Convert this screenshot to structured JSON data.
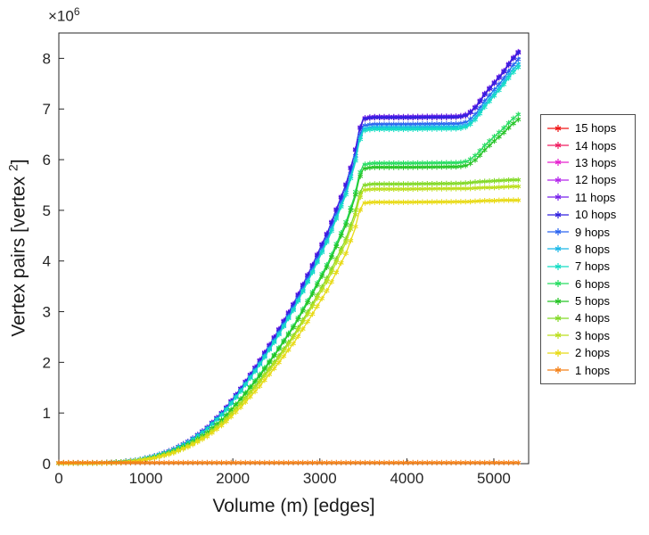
{
  "axes": {
    "x_label": "Volume (m) [edges]",
    "y_label_prefix": "Vertex pairs [vertex ",
    "y_label_sup": "2",
    "y_label_suffix": "]",
    "offset_label": "×10",
    "offset_exp": "6",
    "x_ticks": [
      0,
      1000,
      2000,
      3000,
      4000,
      5000
    ],
    "x_tick_labels": [
      "0",
      "1000",
      "2000",
      "3000",
      "4000",
      "5000"
    ],
    "y_ticks": [
      0,
      1,
      2,
      3,
      4,
      5,
      6,
      7,
      8
    ],
    "y_tick_labels": [
      "0",
      "1",
      "2",
      "3",
      "4",
      "5",
      "6",
      "7",
      "8"
    ],
    "axis_color": "#262626"
  },
  "legend": {
    "entries": [
      {
        "label": "15 hops",
        "color": "#f01414"
      },
      {
        "label": "14 hops",
        "color": "#f01e62"
      },
      {
        "label": "13 hops",
        "color": "#e620cf"
      },
      {
        "label": "12 hops",
        "color": "#b424ec"
      },
      {
        "label": "11 hops",
        "color": "#7722ec"
      },
      {
        "label": "10 hops",
        "color": "#3020df"
      },
      {
        "label": "9 hops",
        "color": "#2a64f0"
      },
      {
        "label": "8 hops",
        "color": "#1ab8e8"
      },
      {
        "label": "7 hops",
        "color": "#14ddc4"
      },
      {
        "label": "6 hops",
        "color": "#27dd62"
      },
      {
        "label": "5 hops",
        "color": "#25c425"
      },
      {
        "label": "4 hops",
        "color": "#82d926"
      },
      {
        "label": "3 hops",
        "color": "#bcdf1e"
      },
      {
        "label": "2 hops",
        "color": "#e8da16"
      },
      {
        "label": "1 hops",
        "color": "#f58118"
      }
    ]
  },
  "chart_data": {
    "type": "line",
    "title": "",
    "xlabel": "Volume (m) [edges]",
    "ylabel": "Vertex pairs [vertex^2]",
    "y_scale_note": "y values in millions (axis shows x10^6)",
    "xlim": [
      0,
      5400
    ],
    "ylim_millions": [
      0,
      8.5
    ],
    "legend_position": "right-outside",
    "grid": false,
    "marker": "asterisk",
    "x": [
      0,
      400,
      700,
      900,
      1100,
      1300,
      1500,
      1700,
      1900,
      2100,
      2300,
      2500,
      2700,
      2900,
      3100,
      3300,
      3400,
      3450,
      3500,
      3600,
      4000,
      4600,
      4700,
      4800,
      4900,
      5000,
      5100,
      5200,
      5300
    ],
    "series": [
      {
        "name": "15 hops",
        "color": "#f01414",
        "y": [
          0.01,
          0.01,
          0.03,
          0.07,
          0.15,
          0.27,
          0.45,
          0.7,
          1.05,
          1.5,
          2.0,
          2.55,
          3.15,
          3.85,
          4.6,
          5.5,
          6.1,
          6.55,
          6.8,
          6.83,
          6.83,
          6.84,
          6.88,
          7.05,
          7.3,
          7.5,
          7.7,
          7.95,
          8.15
        ]
      },
      {
        "name": "14 hops",
        "color": "#f01e62",
        "y": [
          0.01,
          0.01,
          0.03,
          0.07,
          0.15,
          0.27,
          0.45,
          0.7,
          1.05,
          1.5,
          2.0,
          2.55,
          3.15,
          3.85,
          4.6,
          5.5,
          6.1,
          6.55,
          6.8,
          6.83,
          6.83,
          6.84,
          6.88,
          7.05,
          7.3,
          7.5,
          7.7,
          7.95,
          8.15
        ]
      },
      {
        "name": "13 hops",
        "color": "#e620cf",
        "y": [
          0.01,
          0.01,
          0.03,
          0.07,
          0.15,
          0.27,
          0.45,
          0.7,
          1.05,
          1.5,
          2.0,
          2.55,
          3.15,
          3.85,
          4.6,
          5.5,
          6.1,
          6.55,
          6.8,
          6.83,
          6.83,
          6.84,
          6.88,
          7.05,
          7.3,
          7.5,
          7.7,
          7.95,
          8.15
        ]
      },
      {
        "name": "12 hops",
        "color": "#b424ec",
        "y": [
          0.01,
          0.01,
          0.03,
          0.07,
          0.15,
          0.27,
          0.45,
          0.7,
          1.05,
          1.5,
          2.0,
          2.55,
          3.15,
          3.85,
          4.6,
          5.5,
          6.1,
          6.55,
          6.8,
          6.83,
          6.83,
          6.84,
          6.88,
          7.05,
          7.3,
          7.5,
          7.7,
          7.95,
          8.15
        ]
      },
      {
        "name": "11 hops",
        "color": "#7722ec",
        "y": [
          0.01,
          0.01,
          0.03,
          0.07,
          0.15,
          0.27,
          0.45,
          0.71,
          1.06,
          1.51,
          2.02,
          2.57,
          3.17,
          3.87,
          4.62,
          5.52,
          6.12,
          6.57,
          6.82,
          6.85,
          6.85,
          6.86,
          6.9,
          7.07,
          7.32,
          7.52,
          7.72,
          7.97,
          8.17
        ]
      },
      {
        "name": "10 hops",
        "color": "#3020df",
        "y": [
          0.01,
          0.01,
          0.03,
          0.07,
          0.15,
          0.27,
          0.45,
          0.7,
          1.05,
          1.5,
          2.0,
          2.55,
          3.15,
          3.85,
          4.6,
          5.5,
          6.1,
          6.55,
          6.8,
          6.83,
          6.83,
          6.84,
          6.88,
          7.05,
          7.3,
          7.5,
          7.7,
          7.95,
          8.15
        ]
      },
      {
        "name": "9 hops",
        "color": "#2a64f0",
        "y": [
          0.01,
          0.01,
          0.03,
          0.07,
          0.15,
          0.26,
          0.44,
          0.69,
          1.03,
          1.47,
          1.96,
          2.5,
          3.09,
          3.78,
          4.51,
          5.4,
          5.99,
          6.43,
          6.67,
          6.7,
          6.7,
          6.71,
          6.75,
          6.92,
          7.17,
          7.37,
          7.57,
          7.82,
          8.02
        ]
      },
      {
        "name": "8 hops",
        "color": "#1ab8e8",
        "y": [
          0.01,
          0.01,
          0.03,
          0.07,
          0.15,
          0.26,
          0.44,
          0.68,
          1.02,
          1.46,
          1.94,
          2.48,
          3.06,
          3.74,
          4.47,
          5.35,
          5.93,
          6.37,
          6.61,
          6.64,
          6.64,
          6.65,
          6.69,
          6.86,
          7.1,
          7.3,
          7.5,
          7.74,
          7.92
        ]
      },
      {
        "name": "7 hops",
        "color": "#14ddc4",
        "y": [
          0.01,
          0.01,
          0.03,
          0.07,
          0.14,
          0.26,
          0.43,
          0.68,
          1.01,
          1.45,
          1.93,
          2.46,
          3.04,
          3.72,
          4.44,
          5.31,
          5.89,
          6.33,
          6.57,
          6.6,
          6.6,
          6.61,
          6.65,
          6.81,
          7.05,
          7.25,
          7.45,
          7.68,
          7.86
        ]
      },
      {
        "name": "6 hops",
        "color": "#27dd62",
        "y": [
          0.01,
          0.01,
          0.03,
          0.06,
          0.13,
          0.23,
          0.39,
          0.61,
          0.91,
          1.3,
          1.74,
          2.21,
          2.73,
          3.34,
          3.99,
          4.77,
          5.29,
          5.69,
          5.9,
          5.93,
          5.93,
          5.94,
          5.97,
          6.1,
          6.29,
          6.45,
          6.6,
          6.78,
          6.92
        ]
      },
      {
        "name": "5 hops",
        "color": "#25c425",
        "y": [
          0.01,
          0.01,
          0.03,
          0.06,
          0.13,
          0.23,
          0.39,
          0.6,
          0.9,
          1.29,
          1.71,
          2.19,
          2.7,
          3.3,
          3.94,
          4.71,
          5.23,
          5.61,
          5.82,
          5.85,
          5.85,
          5.86,
          5.89,
          6.01,
          6.2,
          6.36,
          6.51,
          6.68,
          6.82
        ]
      },
      {
        "name": "4 hops",
        "color": "#82d926",
        "y": [
          0.01,
          0.01,
          0.02,
          0.06,
          0.12,
          0.22,
          0.36,
          0.57,
          0.85,
          1.21,
          1.62,
          2.06,
          2.54,
          3.11,
          3.72,
          4.44,
          4.93,
          5.29,
          5.49,
          5.52,
          5.52,
          5.53,
          5.54,
          5.56,
          5.57,
          5.58,
          5.59,
          5.6,
          5.6
        ]
      },
      {
        "name": "3 hops",
        "color": "#bcdf1e",
        "y": [
          0.01,
          0.01,
          0.02,
          0.06,
          0.12,
          0.21,
          0.36,
          0.56,
          0.83,
          1.19,
          1.59,
          2.02,
          2.5,
          3.06,
          3.65,
          4.37,
          4.84,
          5.2,
          5.4,
          5.42,
          5.42,
          5.43,
          5.43,
          5.44,
          5.45,
          5.45,
          5.46,
          5.47,
          5.47
        ]
      },
      {
        "name": "2 hops",
        "color": "#e8da16",
        "y": [
          0.01,
          0.01,
          0.02,
          0.05,
          0.11,
          0.2,
          0.34,
          0.53,
          0.79,
          1.13,
          1.51,
          1.93,
          2.38,
          2.91,
          3.47,
          4.15,
          4.61,
          4.95,
          5.14,
          5.16,
          5.16,
          5.17,
          5.17,
          5.18,
          5.19,
          5.19,
          5.2,
          5.2,
          5.2
        ]
      },
      {
        "name": "1 hops",
        "color": "#f58118",
        "y": [
          0.02,
          0.02,
          0.02,
          0.02,
          0.02,
          0.02,
          0.02,
          0.02,
          0.02,
          0.02,
          0.02,
          0.02,
          0.02,
          0.02,
          0.02,
          0.02,
          0.02,
          0.02,
          0.02,
          0.02,
          0.02,
          0.02,
          0.02,
          0.02,
          0.02,
          0.02,
          0.02,
          0.02,
          0.02
        ]
      }
    ]
  }
}
